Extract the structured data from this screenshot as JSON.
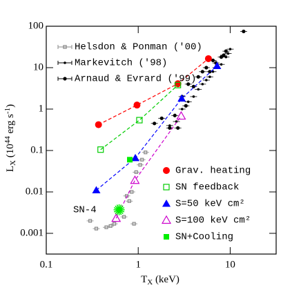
{
  "chart_data": {
    "type": "scatter",
    "x_scale": "log",
    "y_scale": "log",
    "xlim": [
      0.1,
      31.6
    ],
    "ylim": [
      0.000316,
      100
    ],
    "xticks": [
      0.1,
      1,
      10
    ],
    "yticks": [
      100,
      10,
      1,
      0.1,
      0.01,
      0.001
    ],
    "x_label": [
      {
        "text": "T"
      },
      {
        "text": "X",
        "sub": true
      },
      {
        "text": " (keV)"
      }
    ],
    "y_label": [
      {
        "text": "L"
      },
      {
        "text": "X",
        "sub": true
      },
      {
        "text": " (10"
      },
      {
        "text": "44",
        "sup": true
      },
      {
        "text": " erg s"
      },
      {
        "text": "-1",
        "sup": true
      },
      {
        "text": ")"
      }
    ],
    "annotation": "SN-4",
    "observations": [
      {
        "name": "Helsdon & Ponman ('00)",
        "color": "#888888",
        "marker": "open-square",
        "x": [
          0.35,
          0.45,
          0.5,
          0.55,
          0.9,
          0.3,
          0.7,
          0.75,
          0.8,
          0.85,
          0.95,
          1.05,
          1.1,
          1.2
        ],
        "values": [
          0.0013,
          0.0014,
          0.0015,
          0.0017,
          0.0017,
          0.002,
          0.0025,
          0.008,
          0.006,
          0.01,
          0.03,
          0.045,
          0.06,
          0.09
        ]
      },
      {
        "name": "Markevitch ('98)",
        "color": "#000000",
        "marker": "dot",
        "x": [
          2.2,
          2.6,
          3,
          3.5,
          4,
          4.5,
          5,
          5.5,
          6,
          6.5,
          7,
          8,
          9,
          9.5,
          10
        ],
        "values": [
          0.4,
          0.5,
          1,
          1.5,
          2,
          3,
          4,
          5,
          6,
          8,
          10,
          12,
          18,
          22,
          28
        ]
      },
      {
        "name": "Arnaud & Evrard ('99)",
        "color": "#000000",
        "marker": "filled-circle",
        "x": [
          1.5,
          1.8,
          2.2,
          2.5,
          2.7,
          3,
          3.3,
          3.5,
          4,
          4.5,
          5,
          5.5,
          6,
          6.5,
          7,
          8,
          8.5,
          9,
          14
        ],
        "values": [
          0.45,
          0.6,
          0.35,
          0.7,
          0.35,
          2,
          1.2,
          4,
          3.5,
          6,
          8,
          10,
          8,
          15,
          13,
          18,
          20,
          25,
          75
        ]
      }
    ],
    "series": [
      {
        "name": "Grav. heating",
        "color": "#ff0000",
        "marker": "filled-circle",
        "line": true,
        "x": [
          0.37,
          0.97,
          2.7,
          5.8
        ],
        "values": [
          0.42,
          1.25,
          4.1,
          16.5
        ]
      },
      {
        "name": "SN feedback",
        "color": "#00cc00",
        "marker": "open-square",
        "line": true,
        "x": [
          0.39,
          1.03,
          2.7
        ],
        "values": [
          0.105,
          0.54,
          3.8
        ]
      },
      {
        "name": "S=50 keV cm²",
        "color": "#0000ff",
        "marker": "filled-triangle",
        "line": true,
        "x": [
          0.35,
          0.93,
          2.97,
          7.2
        ],
        "values": [
          0.011,
          0.066,
          1.8,
          11
        ]
      },
      {
        "name": "S=100 keV cm²",
        "color": "#cc00cc",
        "marker": "open-triangle",
        "line": true,
        "x": [
          0.575,
          0.92,
          2.93
        ],
        "values": [
          0.0023,
          0.019,
          0.68
        ]
      },
      {
        "name": "SN+Cooling",
        "color": "#00ee00",
        "marker": "filled-square",
        "line": false,
        "x": [
          0.81
        ],
        "values": [
          0.06
        ]
      }
    ],
    "sn4": {
      "color": "#00ee00",
      "marker": "star",
      "x": [
        0.62
      ],
      "values": [
        0.0037
      ]
    }
  }
}
